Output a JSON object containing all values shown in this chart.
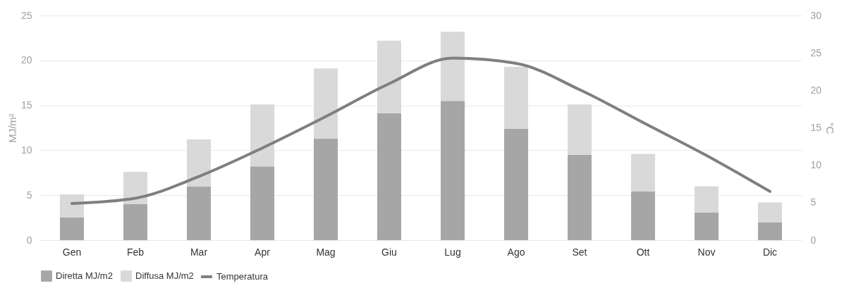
{
  "chart_data": {
    "type": "bar",
    "stacked": true,
    "ylabel": "MJ/m²",
    "y2label": "°C",
    "categories": [
      "Gen",
      "Feb",
      "Mar",
      "Apr",
      "Mag",
      "Giu",
      "Lug",
      "Ago",
      "Set",
      "Ott",
      "Nov",
      "Dic"
    ],
    "series": [
      {
        "name": "Diretta MJ/m2",
        "color": "#a6a6a6",
        "values": [
          2.5,
          4.0,
          6.0,
          8.2,
          11.3,
          14.1,
          15.5,
          12.4,
          9.5,
          5.4,
          3.1,
          2.0
        ]
      },
      {
        "name": "Diffusa MJ/m2",
        "color": "#d9d9d9",
        "values": [
          2.6,
          3.6,
          5.2,
          6.9,
          7.8,
          8.1,
          7.7,
          6.9,
          5.6,
          4.2,
          2.9,
          2.2
        ]
      },
      {
        "name": "Temperatura",
        "type": "line",
        "axis": "y2",
        "color": "#7f7f7f",
        "values": [
          4.9,
          5.6,
          8.5,
          12.3,
          16.5,
          20.9,
          24.3,
          23.6,
          20.1,
          15.7,
          11.3,
          6.5
        ]
      }
    ],
    "ylim": [
      0,
      25
    ],
    "yticks": [
      0,
      5,
      10,
      15,
      20,
      25
    ],
    "y2lim": [
      0,
      30
    ],
    "y2ticks": [
      0,
      5,
      10,
      15,
      20,
      25,
      30
    ],
    "grid": "y",
    "legend": "bottom",
    "line_style": "solid"
  }
}
